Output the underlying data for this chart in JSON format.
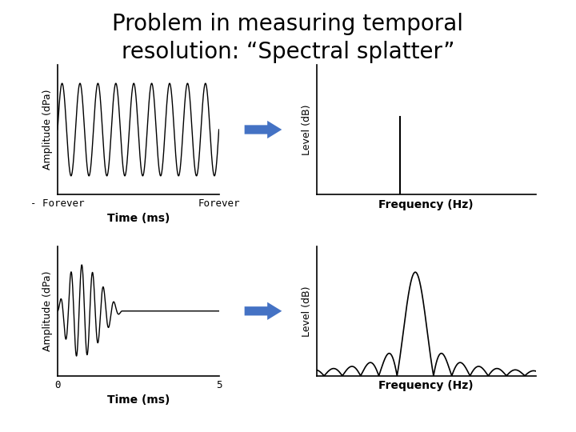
{
  "title_line1": "Problem in measuring temporal",
  "title_line2": "resolution: “Spectral splatter”",
  "title_fontsize": 20,
  "bg_color": "#ffffff",
  "wave_color": "#000000",
  "arrow_color": "#4472C4",
  "top_left_ylabel": "Amplitude (dPa)",
  "top_left_xlabel": "Time (ms)",
  "top_left_xtick_left": "- Forever",
  "top_left_xtick_right": "Forever",
  "top_right_xlabel": "Frequency (Hz)",
  "top_right_ylabel": "Level (dB)",
  "bottom_left_ylabel": "Amplitude (dPa)",
  "bottom_left_xlabel": "Time (ms)",
  "bottom_left_xtick_left": "0",
  "bottom_left_xtick_right": "5",
  "bottom_right_xlabel": "Frequency (Hz)",
  "bottom_right_ylabel": "Level (dB)",
  "label_fontsize": 9,
  "xlabel_fontsize": 10
}
